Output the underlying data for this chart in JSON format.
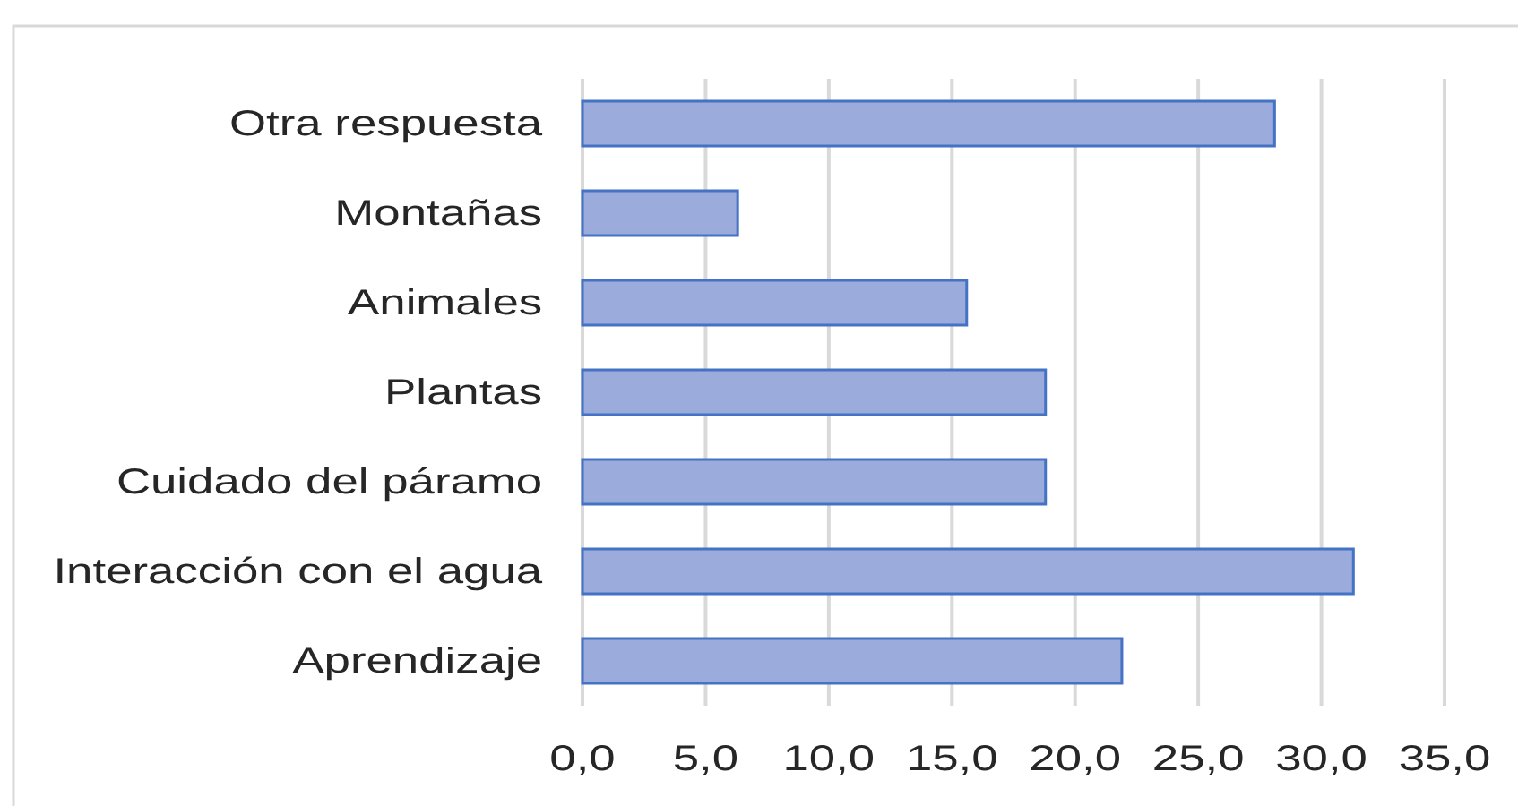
{
  "chart_data": {
    "type": "bar",
    "orientation": "horizontal",
    "categories": [
      "Otra respuesta",
      "Montañas",
      "Animales",
      "Plantas",
      "Cuidado del páramo",
      "Interacción con el agua",
      "Aprendizaje"
    ],
    "values": [
      28.1,
      6.3,
      15.6,
      18.8,
      18.8,
      31.3,
      21.9
    ],
    "color": "#9aabdc",
    "xlim": [
      0,
      35
    ],
    "xticks": [
      {
        "value": 0,
        "label": "0,0"
      },
      {
        "value": 5,
        "label": "5,0"
      },
      {
        "value": 10,
        "label": "10,0"
      },
      {
        "value": 15,
        "label": "15,0"
      },
      {
        "value": 20,
        "label": "20,0"
      },
      {
        "value": 25,
        "label": "25,0"
      },
      {
        "value": 30,
        "label": "30,0"
      },
      {
        "value": 35,
        "label": "35,0"
      }
    ],
    "grid": "x"
  }
}
